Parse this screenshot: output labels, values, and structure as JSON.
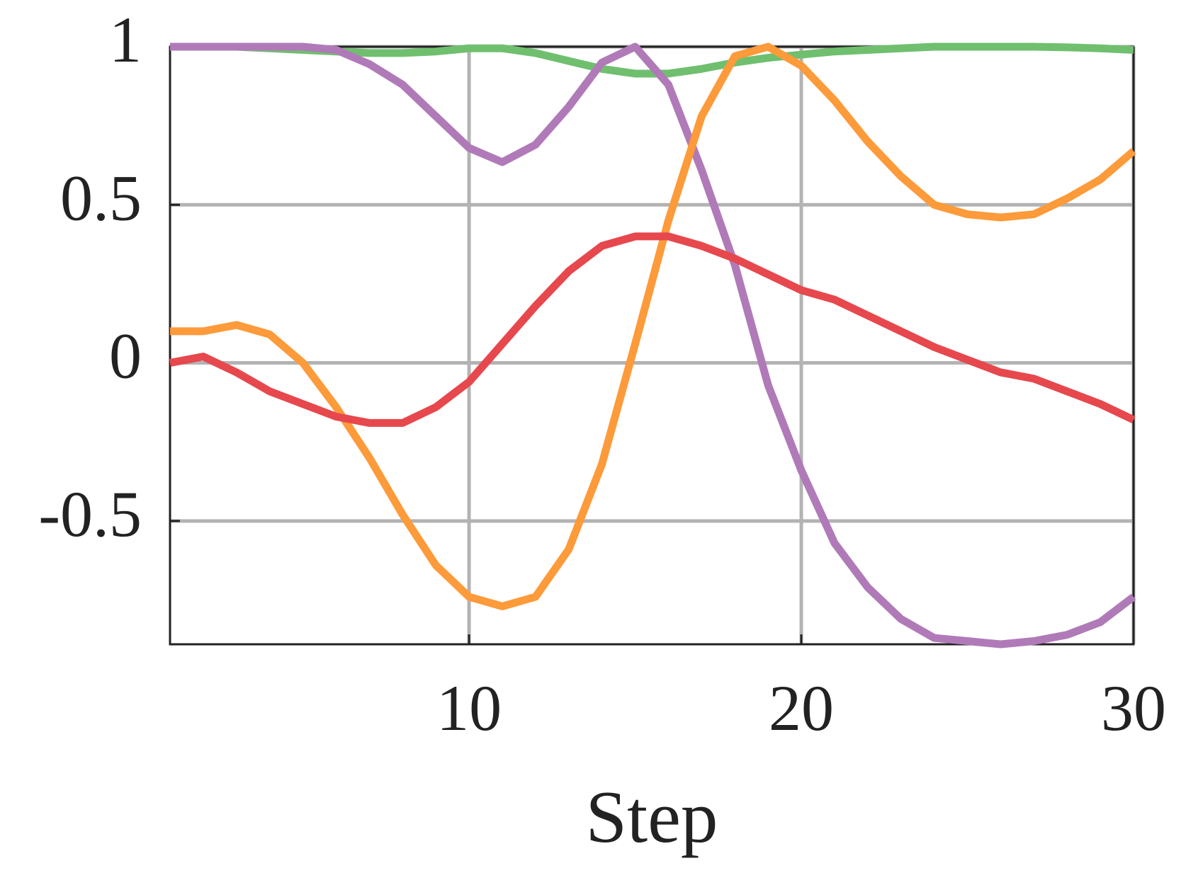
{
  "chart_data": {
    "type": "line",
    "xlabel": "Step",
    "x": [
      1,
      2,
      3,
      4,
      5,
      6,
      7,
      8,
      9,
      10,
      11,
      12,
      13,
      14,
      15,
      16,
      17,
      18,
      19,
      20,
      21,
      22,
      23,
      24,
      25,
      26,
      27,
      28,
      29,
      30
    ],
    "series": [
      {
        "color": "#6fbf6f",
        "values": [
          1,
          1,
          1,
          0.995,
          0.99,
          0.985,
          0.98,
          0.98,
          0.985,
          0.995,
          0.995,
          0.98,
          0.955,
          0.93,
          0.915,
          0.915,
          0.93,
          0.95,
          0.965,
          0.975,
          0.985,
          0.99,
          0.995,
          1,
          1,
          1,
          1,
          0.998,
          0.995,
          0.99
        ]
      },
      {
        "color": "#b07ab8",
        "values": [
          1,
          1,
          1,
          1,
          1,
          0.99,
          0.945,
          0.88,
          0.78,
          0.68,
          0.635,
          0.69,
          0.81,
          0.95,
          1,
          0.88,
          0.61,
          0.31,
          -0.07,
          -0.34,
          -0.57,
          -0.71,
          -0.81,
          -0.87,
          -0.88,
          -0.89,
          -0.88,
          -0.86,
          -0.82,
          -0.74
        ]
      },
      {
        "color": "#fd9a3a",
        "values": [
          0.1,
          0.1,
          0.12,
          0.09,
          0,
          -0.14,
          -0.3,
          -0.48,
          -0.64,
          -0.74,
          -0.77,
          -0.74,
          -0.59,
          -0.32,
          0.06,
          0.45,
          0.78,
          0.97,
          1,
          0.94,
          0.83,
          0.7,
          0.59,
          0.5,
          0.47,
          0.46,
          0.47,
          0.52,
          0.58,
          0.67
        ]
      },
      {
        "color": "#e6484d",
        "values": [
          0,
          0.02,
          -0.03,
          -0.09,
          -0.13,
          -0.17,
          -0.19,
          -0.19,
          -0.14,
          -0.06,
          0.06,
          0.18,
          0.29,
          0.37,
          0.4,
          0.4,
          0.37,
          0.33,
          0.28,
          0.23,
          0.2,
          0.15,
          0.1,
          0.05,
          0.01,
          -0.03,
          -0.05,
          -0.09,
          -0.13,
          -0.18
        ]
      }
    ],
    "xlim": [
      1,
      30
    ],
    "xticks": [
      10,
      20,
      30
    ],
    "ylim": [
      -0.89,
      1
    ],
    "yticks": [
      -0.5,
      0,
      0.5,
      1
    ],
    "grid": true
  }
}
